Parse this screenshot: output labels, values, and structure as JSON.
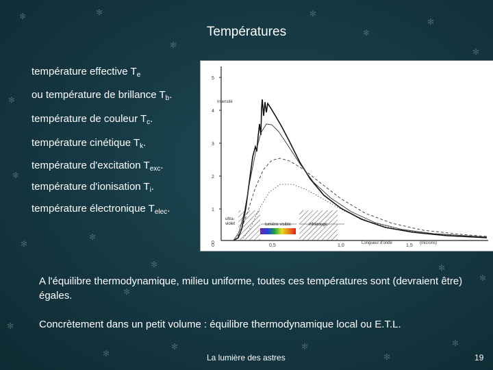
{
  "slide": {
    "title": "Températures",
    "items": [
      {
        "text": "température effective T",
        "sub": "e",
        "suffix": ""
      },
      {
        "text": "ou température de brillance T",
        "sub": "b",
        "suffix": "."
      },
      {
        "text": "température de couleur T",
        "sub": "c",
        "suffix": "."
      },
      {
        "text": "température cinétique T",
        "sub": "k",
        "suffix": "."
      },
      {
        "text": "température d'excitation T",
        "sub": "exc",
        "suffix": "."
      },
      {
        "text": "température d'ionisation T",
        "sub": "i",
        "suffix": "."
      },
      {
        "text": "température électronique T",
        "sub": "elec",
        "suffix": "."
      }
    ],
    "paragraph1": "A l'équilibre thermodynamique, milieu uniforme, toutes ces températures sont (devraient être) égales.",
    "paragraph2": "Concrètement dans un petit volume : équilibre thermodynamique local ou E.T.L.",
    "footer_text": "La lumière des astres",
    "page_number": "19"
  },
  "figure": {
    "ylabel": "Intensité",
    "yticks": [
      "5",
      "4",
      "3",
      "2",
      "1",
      "0"
    ],
    "xticks": [
      "0,5",
      "1,0",
      "1,5"
    ],
    "xlabel": "Longueur d'onde",
    "xunit": "(microns)",
    "uv_label_1": "ultra-",
    "uv_label_2": "violet",
    "visible_label": "lumière visible",
    "ir_label": "infrarouge"
  }
}
